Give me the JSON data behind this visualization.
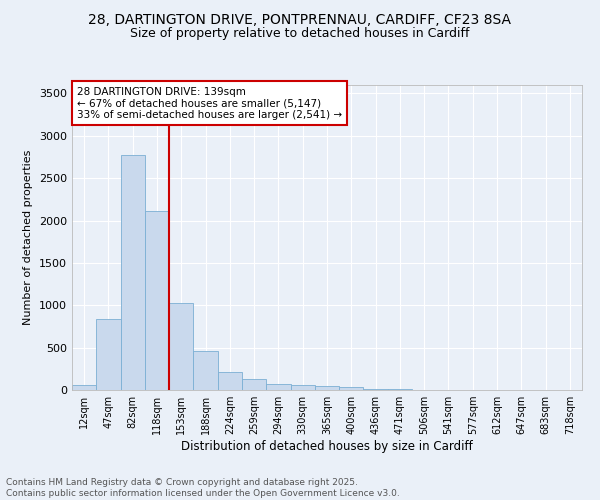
{
  "title_line1": "28, DARTINGTON DRIVE, PONTPRENNAU, CARDIFF, CF23 8SA",
  "title_line2": "Size of property relative to detached houses in Cardiff",
  "xlabel": "Distribution of detached houses by size in Cardiff",
  "ylabel": "Number of detached properties",
  "bar_color": "#c9d9ed",
  "bar_edge_color": "#7bafd4",
  "background_color": "#eaf0f8",
  "grid_color": "#ffffff",
  "categories": [
    "12sqm",
    "47sqm",
    "82sqm",
    "118sqm",
    "153sqm",
    "188sqm",
    "224sqm",
    "259sqm",
    "294sqm",
    "330sqm",
    "365sqm",
    "400sqm",
    "436sqm",
    "471sqm",
    "506sqm",
    "541sqm",
    "577sqm",
    "612sqm",
    "647sqm",
    "683sqm",
    "718sqm"
  ],
  "values": [
    60,
    840,
    2770,
    2110,
    1030,
    455,
    215,
    135,
    70,
    55,
    45,
    30,
    15,
    10,
    5,
    3,
    2,
    1,
    0,
    0,
    0
  ],
  "ylim": [
    0,
    3600
  ],
  "yticks": [
    0,
    500,
    1000,
    1500,
    2000,
    2500,
    3000,
    3500
  ],
  "property_bin_index": 3,
  "red_line_color": "#cc0000",
  "annotation_text": "28 DARTINGTON DRIVE: 139sqm\n← 67% of detached houses are smaller (5,147)\n33% of semi-detached houses are larger (2,541) →",
  "annotation_box_color": "#ffffff",
  "annotation_box_edge": "#cc0000",
  "footer_text": "Contains HM Land Registry data © Crown copyright and database right 2025.\nContains public sector information licensed under the Open Government Licence v3.0.",
  "title_fontsize": 10,
  "subtitle_fontsize": 9,
  "annotation_fontsize": 7.5,
  "footer_fontsize": 6.5,
  "ylabel_fontsize": 8,
  "xlabel_fontsize": 8.5,
  "tick_fontsize": 7,
  "ytick_fontsize": 8
}
